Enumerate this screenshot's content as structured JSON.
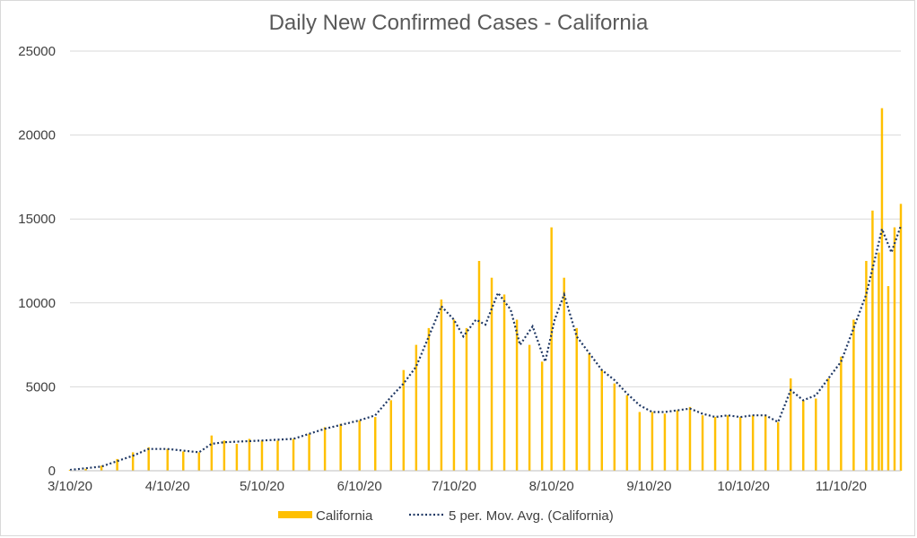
{
  "chart_data": {
    "type": "bar",
    "title": "Daily New Confirmed Cases - California",
    "xlabel": "",
    "ylabel": "",
    "ylim": [
      0,
      25000
    ],
    "yticks": [
      0,
      5000,
      10000,
      15000,
      20000,
      25000
    ],
    "x_range": [
      "2020-03-10",
      "2020-11-29"
    ],
    "x_ticks": [
      {
        "date": "2020-03-10",
        "label": "3/10/20"
      },
      {
        "date": "2020-04-10",
        "label": "4/10/20"
      },
      {
        "date": "2020-05-10",
        "label": "5/10/20"
      },
      {
        "date": "2020-06-10",
        "label": "6/10/20"
      },
      {
        "date": "2020-07-10",
        "label": "7/10/20"
      },
      {
        "date": "2020-08-10",
        "label": "8/10/20"
      },
      {
        "date": "2020-09-10",
        "label": "9/10/20"
      },
      {
        "date": "2020-10-10",
        "label": "10/10/20"
      },
      {
        "date": "2020-11-10",
        "label": "11/10/20"
      }
    ],
    "grid": "horizontal",
    "legend_position": "bottom",
    "series": [
      {
        "name": "California",
        "kind": "bar",
        "color": "#FFC000",
        "points": [
          [
            "2020-03-10",
            50
          ],
          [
            "2020-03-15",
            120
          ],
          [
            "2020-03-20",
            300
          ],
          [
            "2020-03-25",
            700
          ],
          [
            "2020-03-30",
            1100
          ],
          [
            "2020-04-04",
            1400
          ],
          [
            "2020-04-10",
            1300
          ],
          [
            "2020-04-15",
            1150
          ],
          [
            "2020-04-20",
            1100
          ],
          [
            "2020-04-24",
            2100
          ],
          [
            "2020-04-28",
            1800
          ],
          [
            "2020-05-02",
            1600
          ],
          [
            "2020-05-06",
            1900
          ],
          [
            "2020-05-10",
            1800
          ],
          [
            "2020-05-15",
            1800
          ],
          [
            "2020-05-20",
            1900
          ],
          [
            "2020-05-25",
            2200
          ],
          [
            "2020-05-30",
            2600
          ],
          [
            "2020-06-04",
            2800
          ],
          [
            "2020-06-10",
            3000
          ],
          [
            "2020-06-15",
            3200
          ],
          [
            "2020-06-20",
            4200
          ],
          [
            "2020-06-24",
            6000
          ],
          [
            "2020-06-28",
            7500
          ],
          [
            "2020-07-02",
            8500
          ],
          [
            "2020-07-06",
            10200
          ],
          [
            "2020-07-10",
            9000
          ],
          [
            "2020-07-14",
            8500
          ],
          [
            "2020-07-18",
            12500
          ],
          [
            "2020-07-22",
            11500
          ],
          [
            "2020-07-26",
            10500
          ],
          [
            "2020-07-30",
            9000
          ],
          [
            "2020-08-03",
            7500
          ],
          [
            "2020-08-07",
            6500
          ],
          [
            "2020-08-10",
            14500
          ],
          [
            "2020-08-14",
            11500
          ],
          [
            "2020-08-18",
            8500
          ],
          [
            "2020-08-22",
            7000
          ],
          [
            "2020-08-26",
            6000
          ],
          [
            "2020-08-30",
            5200
          ],
          [
            "2020-09-03",
            4500
          ],
          [
            "2020-09-07",
            3500
          ],
          [
            "2020-09-11",
            3500
          ],
          [
            "2020-09-15",
            3400
          ],
          [
            "2020-09-19",
            3600
          ],
          [
            "2020-09-23",
            3800
          ],
          [
            "2020-09-27",
            3300
          ],
          [
            "2020-10-01",
            3200
          ],
          [
            "2020-10-05",
            3300
          ],
          [
            "2020-10-09",
            3200
          ],
          [
            "2020-10-13",
            3300
          ],
          [
            "2020-10-17",
            3300
          ],
          [
            "2020-10-21",
            2900
          ],
          [
            "2020-10-25",
            5500
          ],
          [
            "2020-10-29",
            4200
          ],
          [
            "2020-11-02",
            4300
          ],
          [
            "2020-11-06",
            5500
          ],
          [
            "2020-11-10",
            6800
          ],
          [
            "2020-11-14",
            9000
          ],
          [
            "2020-11-18",
            12500
          ],
          [
            "2020-11-20",
            15500
          ],
          [
            "2020-11-22",
            13000
          ],
          [
            "2020-11-23",
            21600
          ],
          [
            "2020-11-25",
            11000
          ],
          [
            "2020-11-27",
            14500
          ],
          [
            "2020-11-29",
            15900
          ]
        ]
      },
      {
        "name": "5 per. Mov. Avg. (California)",
        "kind": "line",
        "style": "dotted",
        "color": "#1F3864",
        "points": [
          [
            "2020-03-10",
            50
          ],
          [
            "2020-03-20",
            250
          ],
          [
            "2020-03-30",
            900
          ],
          [
            "2020-04-04",
            1300
          ],
          [
            "2020-04-10",
            1300
          ],
          [
            "2020-04-20",
            1100
          ],
          [
            "2020-04-24",
            1600
          ],
          [
            "2020-04-28",
            1700
          ],
          [
            "2020-05-10",
            1800
          ],
          [
            "2020-05-20",
            1900
          ],
          [
            "2020-05-30",
            2500
          ],
          [
            "2020-06-10",
            3000
          ],
          [
            "2020-06-15",
            3300
          ],
          [
            "2020-06-20",
            4400
          ],
          [
            "2020-06-24",
            5200
          ],
          [
            "2020-06-28",
            6200
          ],
          [
            "2020-07-02",
            8000
          ],
          [
            "2020-07-06",
            9800
          ],
          [
            "2020-07-10",
            9000
          ],
          [
            "2020-07-13",
            8000
          ],
          [
            "2020-07-17",
            9000
          ],
          [
            "2020-07-20",
            8700
          ],
          [
            "2020-07-24",
            10600
          ],
          [
            "2020-07-28",
            9600
          ],
          [
            "2020-07-31",
            7500
          ],
          [
            "2020-08-04",
            8600
          ],
          [
            "2020-08-08",
            6500
          ],
          [
            "2020-08-11",
            9000
          ],
          [
            "2020-08-14",
            10500
          ],
          [
            "2020-08-18",
            8000
          ],
          [
            "2020-08-22",
            7000
          ],
          [
            "2020-08-26",
            6000
          ],
          [
            "2020-08-30",
            5400
          ],
          [
            "2020-09-03",
            4600
          ],
          [
            "2020-09-07",
            3900
          ],
          [
            "2020-09-11",
            3500
          ],
          [
            "2020-09-15",
            3500
          ],
          [
            "2020-09-19",
            3600
          ],
          [
            "2020-09-23",
            3700
          ],
          [
            "2020-09-27",
            3400
          ],
          [
            "2020-10-01",
            3200
          ],
          [
            "2020-10-05",
            3300
          ],
          [
            "2020-10-09",
            3200
          ],
          [
            "2020-10-13",
            3300
          ],
          [
            "2020-10-17",
            3300
          ],
          [
            "2020-10-21",
            2900
          ],
          [
            "2020-10-25",
            4800
          ],
          [
            "2020-10-29",
            4200
          ],
          [
            "2020-11-02",
            4500
          ],
          [
            "2020-11-06",
            5500
          ],
          [
            "2020-11-10",
            6500
          ],
          [
            "2020-11-14",
            8500
          ],
          [
            "2020-11-18",
            10500
          ],
          [
            "2020-11-21",
            12800
          ],
          [
            "2020-11-23",
            14400
          ],
          [
            "2020-11-26",
            13000
          ],
          [
            "2020-11-29",
            14600
          ]
        ]
      }
    ]
  }
}
